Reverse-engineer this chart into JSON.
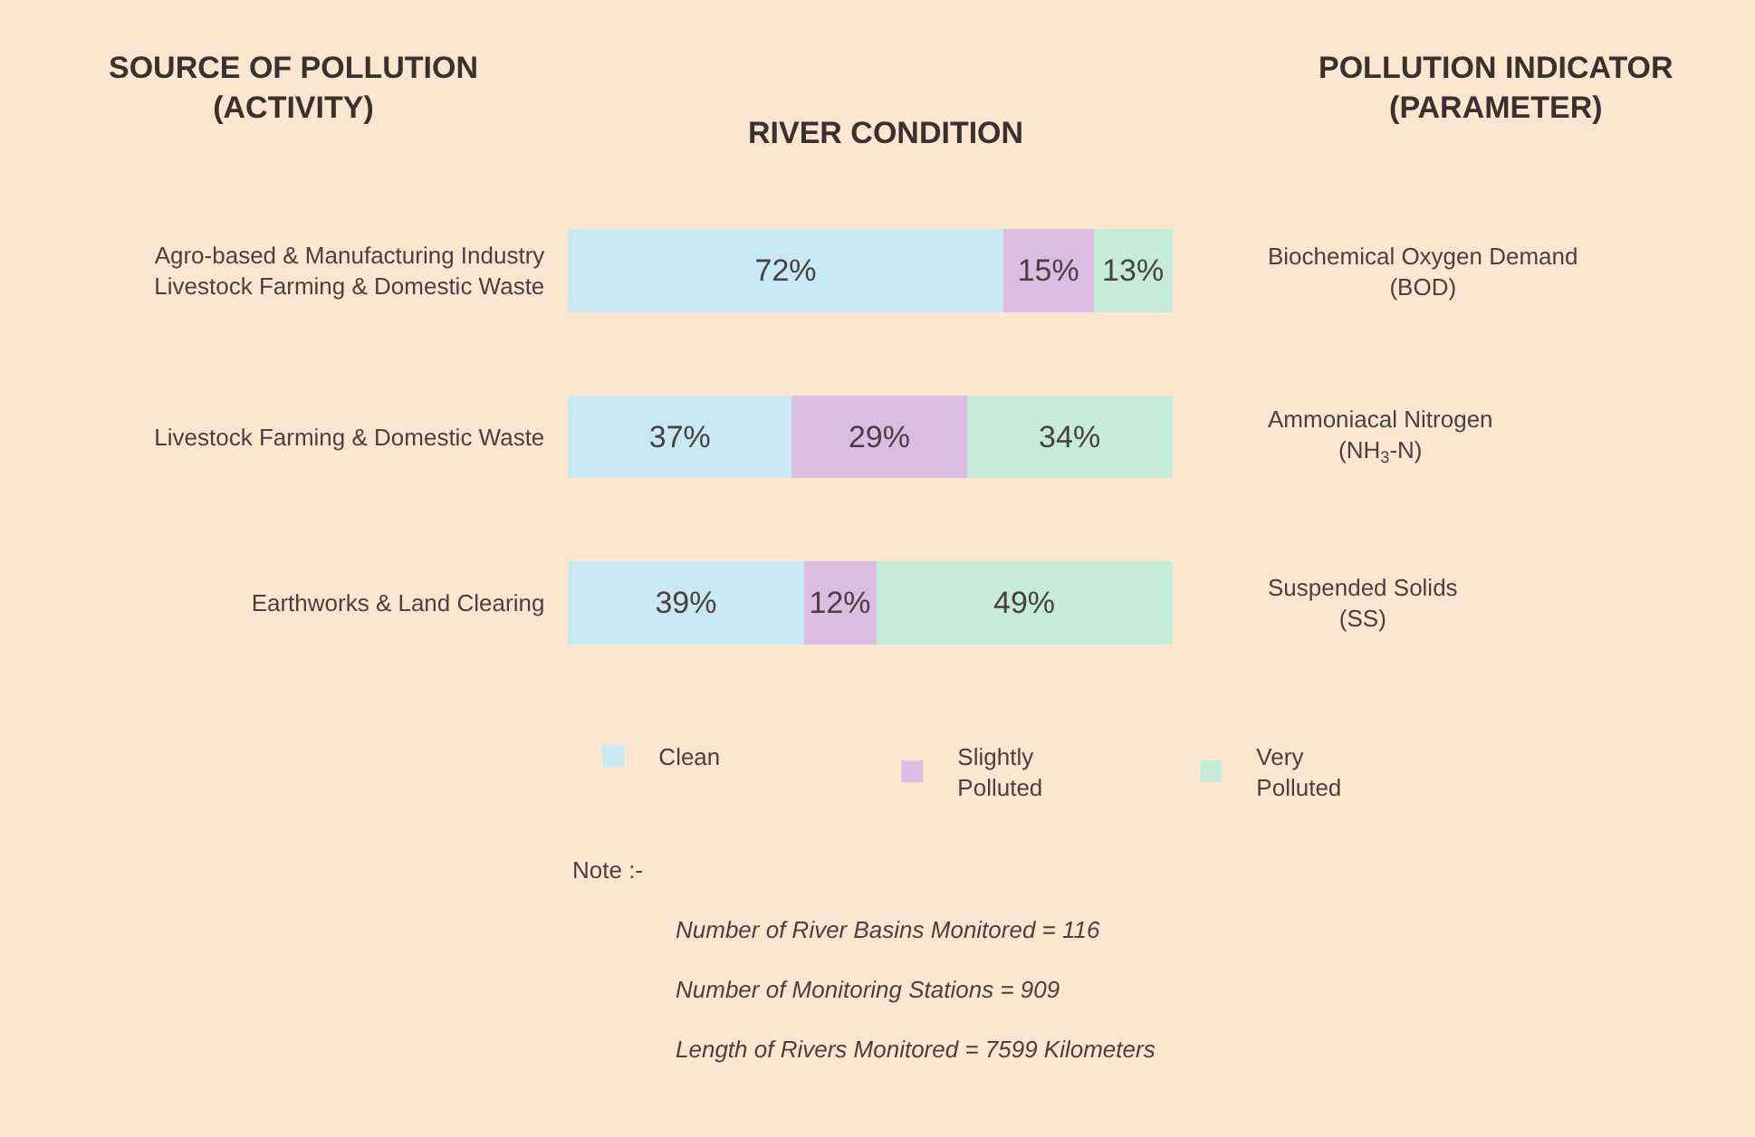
{
  "chart_data": {
    "type": "bar",
    "orientation": "horizontal",
    "stacked": true,
    "title": "RIVER CONDITION",
    "ylabel": "SOURCE OF POLLUTION\n(ACTIVITY)",
    "categories": [
      "Agro-based & Manufacturing Industry\nLivestock Farming & Domestic Waste",
      "Livestock Farming & Domestic Waste",
      "Earthworks & Land Clearing"
    ],
    "y2_categories": [
      "Biochemical Oxygen Demand\n(BOD)",
      "Ammoniacal Nitrogen\n(NH$_{3}$-N)",
      "Suspended Solids\n(SS)"
    ],
    "series": [
      {
        "name": "Clean",
        "color": "#c8e8f4",
        "values": [
          72,
          37,
          39
        ],
        "value_labels": [
          "72%",
          "37%",
          "39%"
        ]
      },
      {
        "name": "Slightly\nPolluted",
        "color": "#dbbde3",
        "values": [
          15,
          29,
          12
        ],
        "value_labels": [
          "15%",
          "29%",
          "12%"
        ]
      },
      {
        "name": "Very\nPolluted",
        "color": "#c6ecd9",
        "values": [
          13,
          34,
          49
        ],
        "value_labels": [
          "13%",
          "34%",
          "49%"
        ]
      }
    ],
    "legend": "bottom",
    "annotations": [
      "POLLUTION INDICATOR\n(PARAMETER)",
      "Note :-",
      "Number of River Basins Monitored = 116",
      "Number of Monitoring Stations = 909",
      "Length of Rivers Monitored = 7599 Kilometers"
    ]
  }
}
